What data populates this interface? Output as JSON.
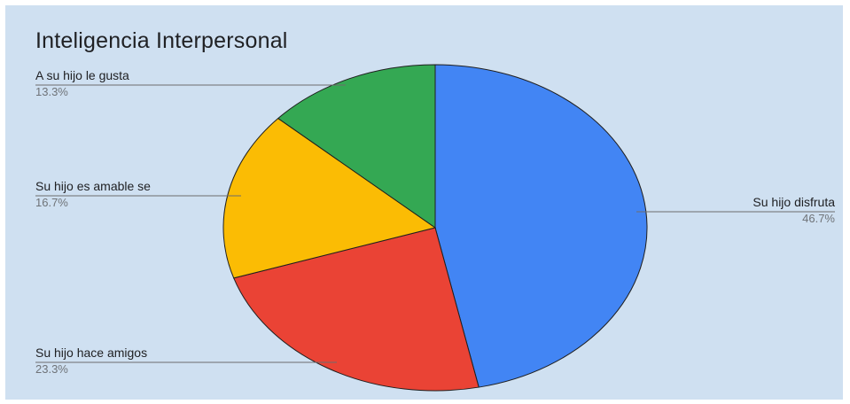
{
  "chart_data": {
    "type": "pie",
    "title": "Inteligencia Interpersonal",
    "slices": [
      {
        "label": "Su hijo disfruta",
        "value": 46.7,
        "pct_text": "46.7%",
        "color": "#4285f4"
      },
      {
        "label": "Su hijo hace amigos",
        "value": 23.3,
        "pct_text": "23.3%",
        "color": "#ea4335"
      },
      {
        "label": "Su hijo es amable se",
        "value": 16.7,
        "pct_text": "16.7%",
        "color": "#fbbc04"
      },
      {
        "label": "A su hijo le gusta",
        "value": 13.3,
        "pct_text": "13.3%",
        "color": "#34a853"
      }
    ],
    "background": "#cfe0f1"
  }
}
